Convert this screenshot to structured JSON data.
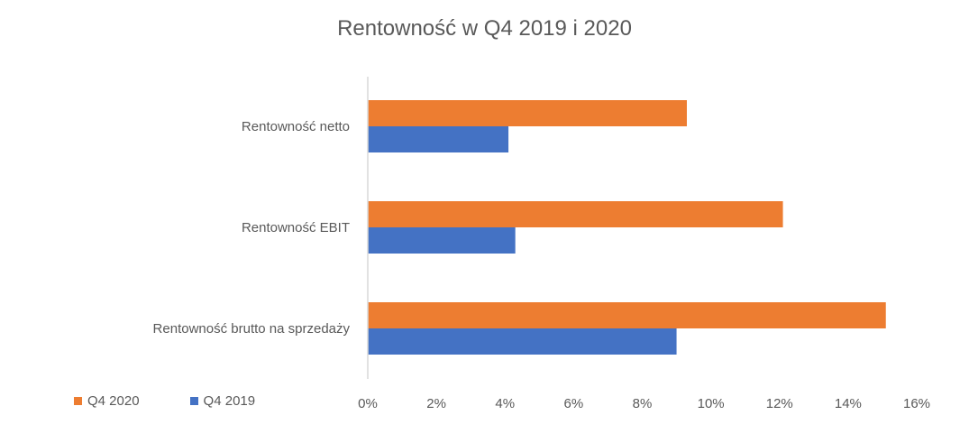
{
  "chart_data": {
    "type": "bar",
    "orientation": "horizontal",
    "title": "Rentowność w Q4 2019 i 2020",
    "categories": [
      "Rentowność netto",
      "Rentowność EBIT",
      "Rentowność brutto na sprzedaży"
    ],
    "series": [
      {
        "name": "Q4 2020",
        "color": "#ED7D31",
        "values": [
          9.3,
          12.1,
          15.1
        ]
      },
      {
        "name": "Q4 2019",
        "color": "#4472C4",
        "values": [
          4.1,
          4.3,
          9.0
        ]
      }
    ],
    "xlim": [
      0,
      16
    ],
    "x_ticks": [
      0,
      2,
      4,
      6,
      8,
      10,
      12,
      14,
      16
    ],
    "x_tick_labels": [
      "0%",
      "2%",
      "4%",
      "6%",
      "8%",
      "10%",
      "12%",
      "14%",
      "16%"
    ],
    "xlabel": "",
    "ylabel": "",
    "grid": false,
    "legend_position": "bottom-left"
  }
}
